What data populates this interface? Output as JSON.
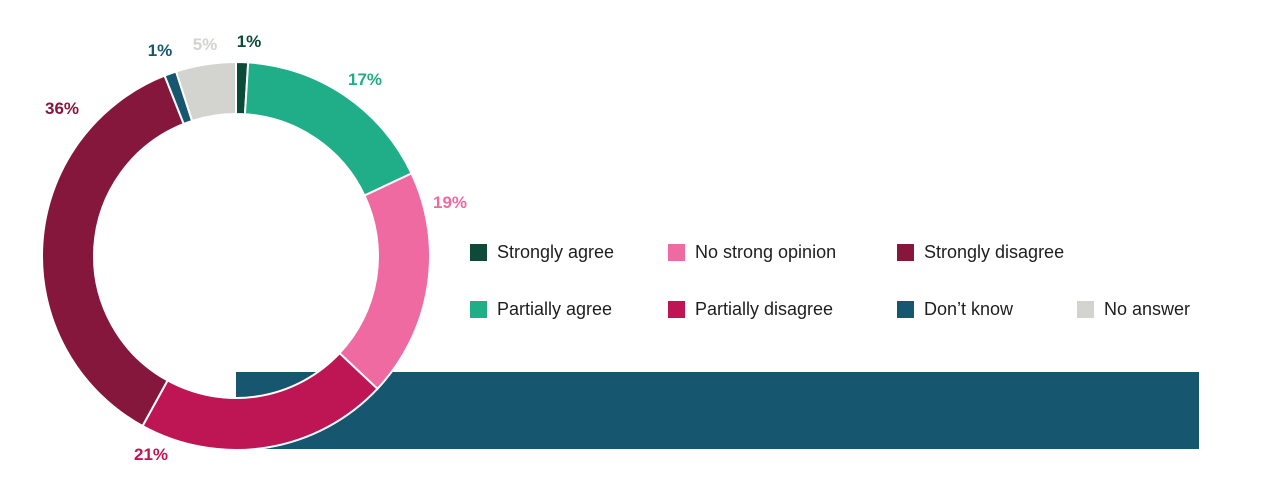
{
  "chart_data": {
    "type": "pie",
    "title": "",
    "slices": [
      {
        "name": "Strongly agree",
        "value": 1,
        "label": "1%",
        "color": "#0d4a38"
      },
      {
        "name": "Partially agree",
        "value": 17,
        "label": "17%",
        "color": "#20ae88"
      },
      {
        "name": "No strong opinion",
        "value": 19,
        "label": "19%",
        "color": "#ee6aa0"
      },
      {
        "name": "Partially disagree",
        "value": 21,
        "label": "21%",
        "color": "#be1654"
      },
      {
        "name": "Strongly disagree",
        "value": 36,
        "label": "36%",
        "color": "#84173b"
      },
      {
        "name": "Don’t know",
        "value": 1,
        "label": "1%",
        "color": "#17566f"
      },
      {
        "name": "No answer",
        "value": 5,
        "label": "5%",
        "color": "#d3d3cf"
      }
    ],
    "legend": [
      {
        "label": "Strongly agree",
        "color": "#0d4a38"
      },
      {
        "label": "No strong opinion",
        "color": "#ee6aa0"
      },
      {
        "label": "Strongly disagree",
        "color": "#84173b"
      },
      {
        "label": "Partially agree",
        "color": "#20ae88"
      },
      {
        "label": "Partially disagree",
        "color": "#be1654"
      },
      {
        "label": "Don’t know",
        "color": "#17566f"
      },
      {
        "label": "No answer",
        "color": "#d3d3cf"
      }
    ],
    "legend_placement": "right",
    "background_band_color": "#17566f"
  }
}
